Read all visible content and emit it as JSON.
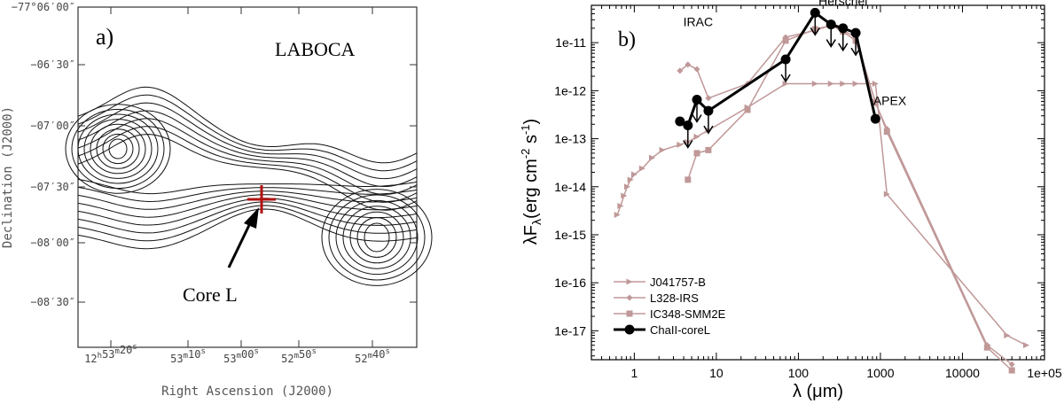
{
  "chart_data": [
    {
      "type": "contour",
      "panel_label": "a)",
      "instrument_label": "LABOCA",
      "xlabel": "Right Ascension (J2000)",
      "ylabel": "Declination (J2000)",
      "x_ticks": [
        {
          "h": "12",
          "m": "53",
          "s": "20"
        },
        {
          "h": "",
          "m": "53",
          "s": "10"
        },
        {
          "h": "",
          "m": "53",
          "s": "00"
        },
        {
          "h": "",
          "m": "52",
          "s": "50"
        },
        {
          "h": "",
          "m": "52",
          "s": "40"
        }
      ],
      "y_ticks": [
        "−77°06′00″",
        "−06′30″",
        "−07′00″",
        "−07′30″",
        "−08′00″",
        "−08′30″"
      ],
      "annotation": "Core L",
      "marker": "cross"
    },
    {
      "type": "line",
      "panel_label": "b)",
      "xscale": "log",
      "yscale": "log",
      "xlim": [
        0.3,
        100000
      ],
      "ylim": [
        2.5e-18,
        6e-11
      ],
      "xlabel": "λ (μm)",
      "ylabel": "λF",
      "ylabel_sub": "λ",
      "ylabel_units": "(erg cm",
      "ylabel_exp1": "-2",
      "ylabel_mid": " s",
      "ylabel_exp2": "-1",
      "ylabel_end": ")",
      "x_tick_labels": [
        "1",
        "10",
        "100",
        "1000",
        "10000",
        "1e+05"
      ],
      "y_tick_labels": [
        "1e-17",
        "1e-16",
        "1e-15",
        "1e-14",
        "1e-13",
        "1e-12",
        "1e-11"
      ],
      "annotations": [
        {
          "text": "IRAC",
          "x": 6,
          "y": 2.2e-11
        },
        {
          "text": "Herschel",
          "x": 350,
          "y": 6e-11
        },
        {
          "text": "APEX",
          "x": 1300,
          "y": 5e-13
        }
      ],
      "series": [
        {
          "name": "J041757-B",
          "marker": "triangle-right",
          "color": "#c09898",
          "points": [
            [
              0.62,
              2.6e-15
            ],
            [
              0.68,
              4e-15
            ],
            [
              0.75,
              6.5e-15
            ],
            [
              0.82,
              1e-14
            ],
            [
              0.9,
              1.4e-14
            ],
            [
              1.0,
              1.8e-14
            ],
            [
              1.25,
              2.4e-14
            ],
            [
              1.65,
              4e-14
            ],
            [
              2.2,
              5.8e-14
            ],
            [
              3.6,
              7.5e-14
            ],
            [
              4.5,
              8.5e-14
            ],
            [
              5.8,
              1.1e-13
            ],
            [
              8,
              1.5e-13
            ],
            [
              24,
              4.5e-13
            ],
            [
              70,
              1.4e-12
            ],
            [
              160,
              1.4e-12
            ],
            [
              250,
              1.4e-12
            ],
            [
              350,
              1.4e-12
            ],
            [
              500,
              1.4e-12
            ],
            [
              870,
              1.4e-12
            ],
            [
              1200,
              7e-15
            ],
            [
              35000,
              8e-18
            ],
            [
              60000,
              5e-18
            ]
          ]
        },
        {
          "name": "L328-IRS",
          "marker": "diamond",
          "color": "#c09898",
          "points": [
            [
              3.6,
              2.6e-12
            ],
            [
              4.5,
              3.5e-12
            ],
            [
              5.8,
              2.8e-12
            ],
            [
              8,
              7e-13
            ],
            [
              24,
              1.4e-12
            ],
            [
              70,
              1.3e-11
            ],
            [
              160,
              1.8e-11
            ],
            [
              250,
              2.3e-11
            ],
            [
              350,
              1.8e-11
            ],
            [
              500,
              1.3e-11
            ],
            [
              870,
              5.5e-13
            ],
            [
              1200,
              1.6e-13
            ],
            [
              20000,
              5e-18
            ],
            [
              40000,
              2e-18
            ]
          ]
        },
        {
          "name": "IC348-SMM2E",
          "marker": "square",
          "color": "#c09898",
          "points": [
            [
              4.5,
              1.4e-14
            ],
            [
              5.8,
              5e-14
            ],
            [
              8,
              5.8e-14
            ],
            [
              24,
              4e-13
            ],
            [
              70,
              1.1e-11
            ],
            [
              160,
              1.9e-11
            ],
            [
              250,
              2.3e-11
            ],
            [
              350,
              1.7e-11
            ],
            [
              500,
              1.1e-11
            ],
            [
              870,
              5.8e-13
            ],
            [
              1200,
              1.4e-13
            ],
            [
              20000,
              4.5e-18
            ],
            [
              40000,
              1.5e-18
            ]
          ]
        },
        {
          "name": "ChaII-coreL",
          "marker": "circle",
          "color": "#000000",
          "points": [
            [
              3.6,
              2.3e-13
            ],
            [
              4.5,
              1.9e-13
            ],
            [
              5.8,
              6.5e-13
            ],
            [
              8,
              3.8e-13
            ],
            [
              70,
              4.5e-12
            ],
            [
              160,
              4.2e-11
            ],
            [
              250,
              2.4e-11
            ],
            [
              350,
              2e-11
            ],
            [
              500,
              1.6e-11
            ],
            [
              870,
              2.6e-13
            ]
          ],
          "upper_limits": [
            4.5,
            5.8,
            8,
            70,
            160,
            250,
            350,
            500
          ]
        }
      ],
      "legend_position": "bottom-left"
    }
  ]
}
